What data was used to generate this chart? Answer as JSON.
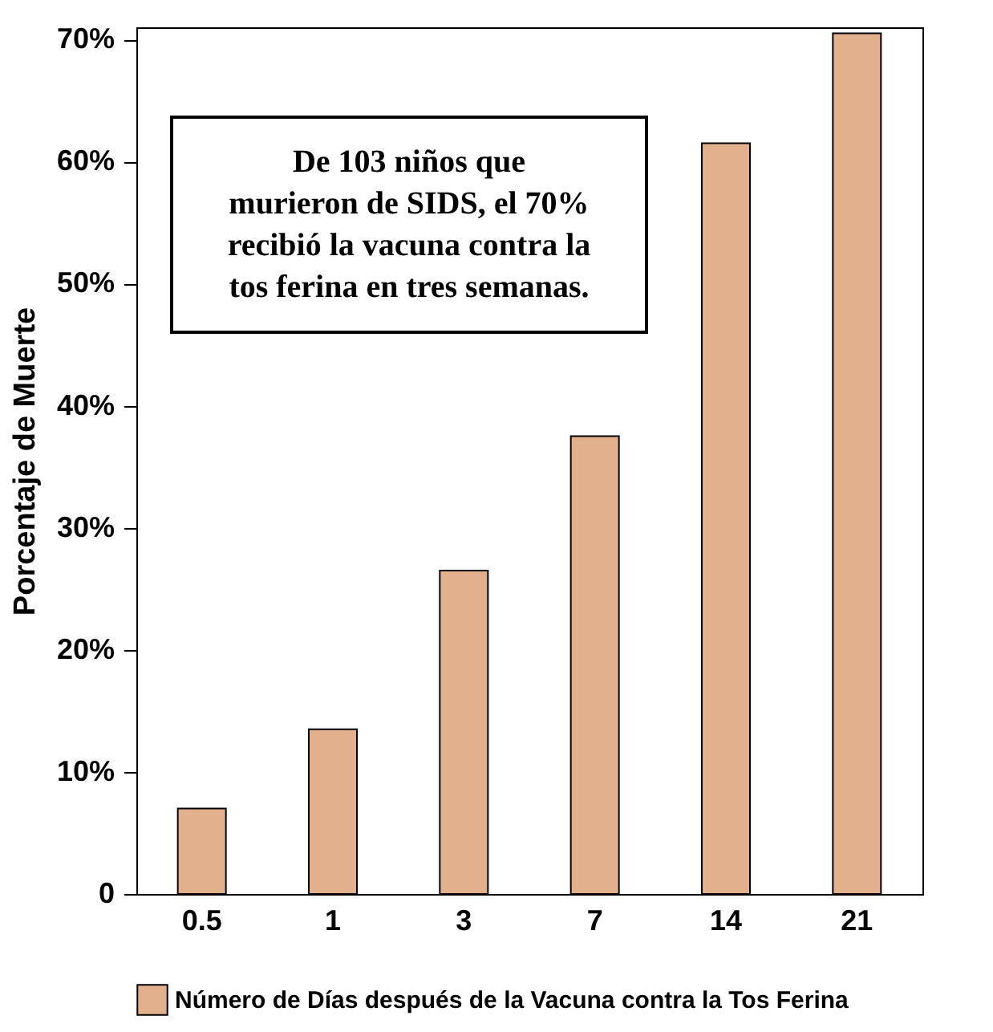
{
  "chart_data": {
    "type": "bar",
    "ylabel": "Porcentaje de Muerte",
    "categories": [
      "0.5",
      "1",
      "3",
      "7",
      "14",
      "21"
    ],
    "series": [
      {
        "name": "Número de Días después de la Vacuna contra la Tos Ferina",
        "color": "#e3b08e",
        "values": [
          7,
          13.5,
          26.5,
          37.5,
          61.5,
          70.5
        ]
      }
    ],
    "ylim": [
      0,
      71
    ],
    "yticks": [
      0,
      {
        "value": 10,
        "label": "10%"
      },
      {
        "value": 20,
        "label": "20%"
      },
      {
        "value": 30,
        "label": "30%"
      },
      {
        "value": 40,
        "label": "40%"
      },
      {
        "value": 50,
        "label": "50%"
      },
      {
        "value": 60,
        "label": "60%"
      },
      {
        "value": 70,
        "label": "70%"
      }
    ],
    "grid": false,
    "legend": "bottom",
    "annotations": [
      "De 103 niños que\nmurieron de SIDS, el 70%\nrecibió la vacuna contra la\ntos ferina en tres semanas."
    ]
  }
}
